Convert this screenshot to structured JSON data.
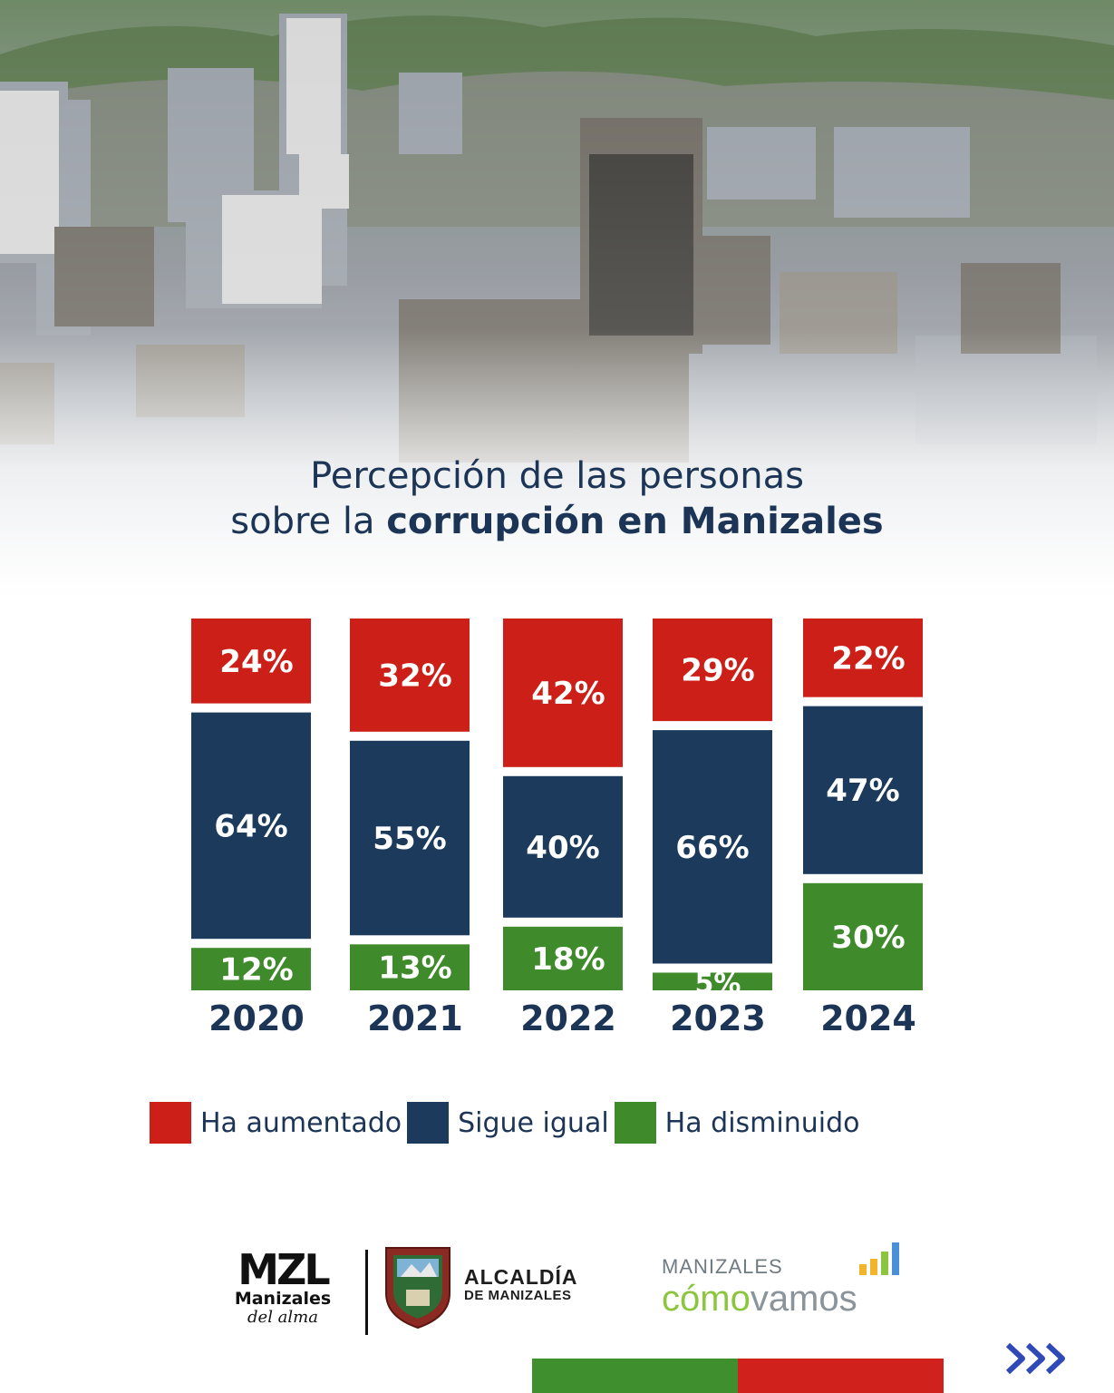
{
  "title": {
    "line1": "Percepción de las personas",
    "line2_regular": "sobre la ",
    "line2_bold": "corrupción en Manizales"
  },
  "chart_data": {
    "type": "bar",
    "stacked": true,
    "categories": [
      "2020",
      "2021",
      "2022",
      "2023",
      "2024"
    ],
    "series": [
      {
        "name": "Ha aumentado",
        "color": "#cc1f17",
        "values": [
          24,
          32,
          42,
          29,
          22
        ],
        "labels": [
          "24%",
          "32%",
          "42%",
          "29%",
          "22%"
        ]
      },
      {
        "name": "Sigue igual",
        "color": "#1b3a5c",
        "values": [
          64,
          55,
          40,
          66,
          47
        ],
        "labels": [
          "64%",
          "55%",
          "40%",
          "66%",
          "47%"
        ]
      },
      {
        "name": "Ha disminuido",
        "color": "#3f8a2a",
        "values": [
          12,
          13,
          18,
          5,
          30
        ],
        "labels": [
          "12%",
          "13%",
          "18%",
          "5%",
          "30%"
        ]
      }
    ],
    "legend_position": "bottom",
    "grid": false
  },
  "legend": {
    "items": [
      {
        "label": "Ha aumentado",
        "color": "#cc1f17"
      },
      {
        "label": "Sigue igual",
        "color": "#1b3a5c"
      },
      {
        "label": "Ha disminuido",
        "color": "#3f8a2a"
      }
    ]
  },
  "logos": {
    "mzl": {
      "mark": "MZL",
      "line1": "Manizales",
      "line2": "del alma"
    },
    "alcaldia": {
      "line1": "ALCALDÍA",
      "line2": "DE MANIZALES"
    },
    "comovamos": {
      "line1": "MANIZALES",
      "word_green": "cómo",
      "word_grey": "vamos"
    }
  },
  "icons": [
    "next-arrows-icon",
    "bar-chart-icon",
    "city-photo"
  ]
}
